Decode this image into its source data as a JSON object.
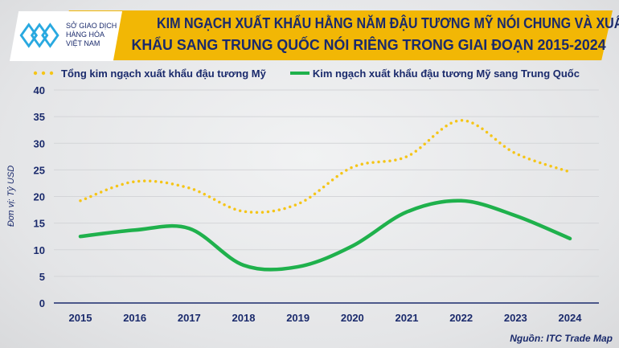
{
  "header": {
    "title_line1": "KIM NGẠCH XUẤT KHẨU HẰNG NĂM ĐẬU TƯƠNG MỸ NÓI CHUNG VÀ XUẤT",
    "title_line2": "KHẨU SANG TRUNG QUỐC NÓI RIÊNG TRONG GIAI ĐOẠN 2015-2024"
  },
  "logo": {
    "line1": "SỞ GIAO DỊCH",
    "line2": "HÀNG HÓA",
    "line3": "VIỆT NAM"
  },
  "source": "Nguồn: ITC Trade Map",
  "colors": {
    "title": "#1a2a6c",
    "banner": "#f2b705",
    "series1": "#f5c518",
    "series2": "#1fb14c"
  },
  "chart_data": {
    "type": "line",
    "title": "KIM NGẠCH XUẤT KHẨU HẰNG NĂM ĐẬU TƯƠNG MỸ NÓI CHUNG VÀ XUẤT KHẨU SANG TRUNG QUỐC NÓI RIÊNG TRONG GIAI ĐOẠN 2015-2024",
    "ylabel": "Đơn vị: Tỷ USD",
    "xlabel": "",
    "ylim": [
      0,
      40
    ],
    "yticks": [
      "0",
      "5",
      "10",
      "15",
      "20",
      "25",
      "30",
      "35",
      "40"
    ],
    "categories": [
      "2015",
      "2016",
      "2017",
      "2018",
      "2019",
      "2020",
      "2021",
      "2022",
      "2023",
      "2024"
    ],
    "legend_position": "top",
    "grid": true,
    "series": [
      {
        "name": "Tổng kim ngạch xuất khẩu đậu tương Mỹ",
        "style": "dotted",
        "color": "#f5c518",
        "values": [
          19.2,
          22.8,
          21.6,
          17.2,
          18.6,
          25.5,
          27.5,
          34.3,
          28.1,
          24.6
        ]
      },
      {
        "name": "Kim ngạch xuất khẩu đậu tương Mỹ sang Trung Quốc",
        "style": "solid",
        "color": "#1fb14c",
        "values": [
          12.5,
          13.7,
          14.0,
          7.1,
          6.8,
          10.7,
          17.1,
          19.2,
          16.4,
          12.1
        ]
      }
    ]
  }
}
